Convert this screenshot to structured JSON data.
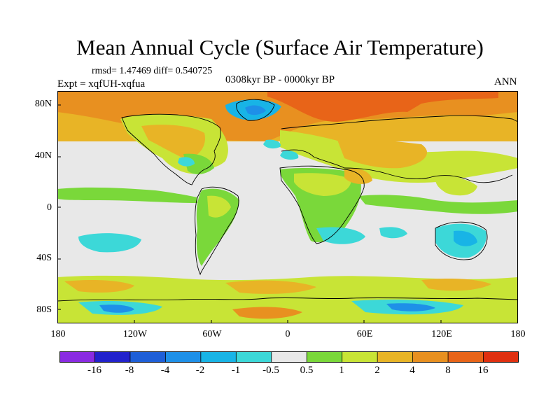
{
  "title": "Mean Annual Cycle (Surface Air Temperature)",
  "stats_line": "rmsd= 1.47469 diff= 0.540725",
  "experiment": "Expt = xqfUH-xqfua",
  "period": "0308kyr BP - 0000kyr BP",
  "season": "ANN",
  "lat_labels": [
    "80N",
    "40N",
    "0",
    "40S",
    "80S"
  ],
  "lon_labels": [
    "180",
    "120W",
    "60W",
    "0",
    "60E",
    "120E",
    "180"
  ],
  "colorbar": {
    "labels": [
      "-16",
      "-8",
      "-4",
      "-2",
      "-1",
      "-0.5",
      "0.5",
      "1",
      "2",
      "4",
      "8",
      "16"
    ],
    "colors": [
      "#8a2be2",
      "#2222cc",
      "#1e5fd8",
      "#1e90e8",
      "#18b4e6",
      "#3cd8d8",
      "#e8e8e8",
      "#7ad83a",
      "#c8e436",
      "#e8b426",
      "#e89020",
      "#e86418",
      "#e03010"
    ]
  },
  "palette": {
    "neutral": "#e8e8e8",
    "green": "#7ad83a",
    "yellowgreen": "#c8e436",
    "amber": "#e8b426",
    "orange": "#e89020",
    "red": "#e86418",
    "cyan": "#3cd8d8",
    "lightblue": "#18b4e6",
    "blue": "#1e90e8",
    "darkblue": "#2222cc"
  }
}
